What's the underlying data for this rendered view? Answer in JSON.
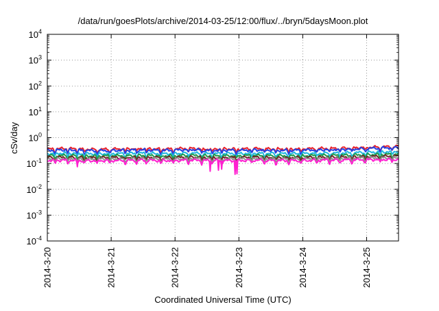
{
  "chart_data": {
    "type": "line",
    "title": "/data/run/goesPlots/archive/2014-03-25/12:00/flux/../bryn/5daysMoon.plot",
    "xlabel": "Coordinated Universal Time (UTC)",
    "ylabel": "cSv/day",
    "yscale": "log",
    "ylim": [
      0.0001,
      10000
    ],
    "xlim_days": [
      0,
      5.5
    ],
    "grid": "dotted",
    "legend": "none",
    "x_ticks": [
      {
        "label": "2014-3-20",
        "day": 0
      },
      {
        "label": "2014-3-21",
        "day": 1
      },
      {
        "label": "2014-3-22",
        "day": 2
      },
      {
        "label": "2014-3-23",
        "day": 3
      },
      {
        "label": "2014-3-24",
        "day": 4
      },
      {
        "label": "2014-3-25",
        "day": 5
      }
    ],
    "y_ticks": [
      {
        "base": "10",
        "exp": "-4",
        "value": 0.0001
      },
      {
        "base": "10",
        "exp": "-3",
        "value": 0.001
      },
      {
        "base": "10",
        "exp": "-2",
        "value": 0.01
      },
      {
        "base": "10",
        "exp": "-1",
        "value": 0.1
      },
      {
        "base": "10",
        "exp": "0",
        "value": 1
      },
      {
        "base": "10",
        "exp": "1",
        "value": 10
      },
      {
        "base": "10",
        "exp": "2",
        "value": 100
      },
      {
        "base": "10",
        "exp": "3",
        "value": 1000
      },
      {
        "base": "10",
        "exp": "4",
        "value": 10000
      }
    ],
    "dip_days": [
      0.12,
      0.32,
      0.47,
      0.58,
      0.78,
      0.98,
      1.22,
      1.4,
      1.55,
      1.78,
      1.97,
      2.21,
      2.42,
      2.58,
      2.73,
      2.96,
      3.2,
      3.4,
      3.58,
      3.78,
      3.97,
      4.22,
      4.42,
      4.58,
      4.77,
      4.98,
      5.21,
      5.4
    ],
    "x": [
      0,
      0.25,
      0.5,
      0.75,
      1,
      1.25,
      1.5,
      1.75,
      2,
      2.25,
      2.5,
      2.75,
      3,
      3.25,
      3.5,
      3.75,
      4,
      4.25,
      4.5,
      4.75,
      5,
      5.25,
      5.5
    ],
    "series": [
      {
        "color": "#e8202a",
        "values": [
          0.36,
          0.38,
          0.37,
          0.35,
          0.36,
          0.37,
          0.38,
          0.36,
          0.37,
          0.39,
          0.36,
          0.37,
          0.36,
          0.38,
          0.37,
          0.36,
          0.37,
          0.38,
          0.39,
          0.4,
          0.42,
          0.44,
          0.46
        ]
      },
      {
        "color": "#2540e0",
        "values": [
          0.32,
          0.34,
          0.33,
          0.31,
          0.32,
          0.33,
          0.34,
          0.32,
          0.33,
          0.35,
          0.32,
          0.33,
          0.32,
          0.34,
          0.33,
          0.32,
          0.33,
          0.34,
          0.35,
          0.36,
          0.38,
          0.4,
          0.42
        ]
      },
      {
        "color": "#20b8e0",
        "values": [
          0.24,
          0.25,
          0.245,
          0.235,
          0.24,
          0.245,
          0.25,
          0.24,
          0.245,
          0.255,
          0.24,
          0.245,
          0.24,
          0.25,
          0.245,
          0.24,
          0.245,
          0.25,
          0.255,
          0.26,
          0.27,
          0.28,
          0.29
        ]
      },
      {
        "color": "#1f9a4a",
        "values": [
          0.2,
          0.205,
          0.2,
          0.195,
          0.2,
          0.2,
          0.205,
          0.2,
          0.2,
          0.21,
          0.2,
          0.2,
          0.2,
          0.205,
          0.2,
          0.2,
          0.2,
          0.205,
          0.21,
          0.21,
          0.22,
          0.225,
          0.23
        ]
      },
      {
        "color": "#702828",
        "values": [
          0.17,
          0.175,
          0.17,
          0.165,
          0.17,
          0.17,
          0.175,
          0.17,
          0.17,
          0.178,
          0.17,
          0.17,
          0.17,
          0.175,
          0.17,
          0.17,
          0.17,
          0.175,
          0.178,
          0.18,
          0.185,
          0.19,
          0.195
        ]
      },
      {
        "color": "#909090",
        "values": [
          0.15,
          0.155,
          0.15,
          0.148,
          0.15,
          0.15,
          0.155,
          0.15,
          0.15,
          0.157,
          0.15,
          0.15,
          0.15,
          0.155,
          0.15,
          0.15,
          0.15,
          0.155,
          0.157,
          0.16,
          0.163,
          0.166,
          0.17
        ]
      },
      {
        "color": "#ff20d0",
        "values": [
          0.13,
          0.135,
          0.13,
          0.128,
          0.13,
          0.13,
          0.135,
          0.13,
          0.13,
          0.136,
          0.13,
          0.13,
          0.13,
          0.135,
          0.13,
          0.13,
          0.13,
          0.135,
          0.136,
          0.138,
          0.14,
          0.142,
          0.145
        ]
      }
    ],
    "magenta_drops": [
      {
        "day": 0.47,
        "value": 0.075
      },
      {
        "day": 2.55,
        "value": 0.05
      },
      {
        "day": 2.68,
        "value": 0.055
      },
      {
        "day": 2.73,
        "value": 0.06
      },
      {
        "day": 2.94,
        "value": 0.038
      },
      {
        "day": 2.97,
        "value": 0.04
      }
    ]
  }
}
